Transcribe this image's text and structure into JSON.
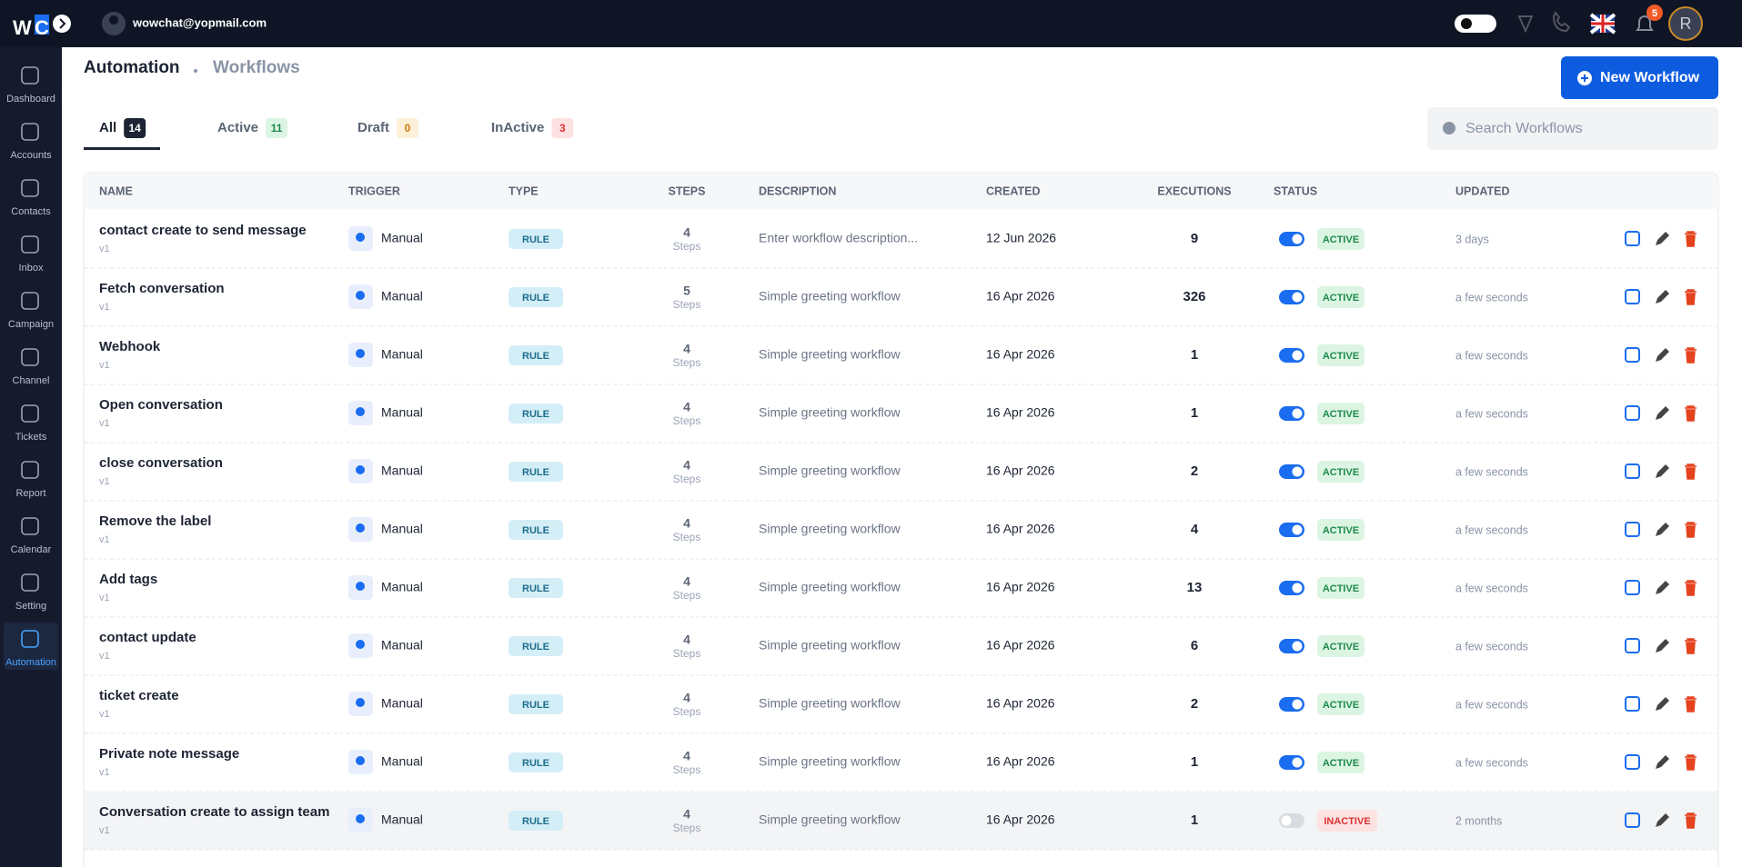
{
  "header": {
    "brand_w": "W",
    "brand_c": "C",
    "email": "wowchat@yopmail.com",
    "notifications": 5,
    "avatar": "R"
  },
  "sidebar": {
    "items": [
      {
        "label": "Dashboard"
      },
      {
        "label": "Accounts"
      },
      {
        "label": "Contacts"
      },
      {
        "label": "Inbox"
      },
      {
        "label": "Campaign"
      },
      {
        "label": "Channel"
      },
      {
        "label": "Tickets"
      },
      {
        "label": "Report"
      },
      {
        "label": "Calendar"
      },
      {
        "label": "Setting"
      },
      {
        "label": "Automation",
        "active": true
      }
    ]
  },
  "page": {
    "title": "Automation",
    "breadcrumb": "Workflows",
    "new_button": "New Workflow",
    "search_placeholder": "Search Workflows",
    "tabs": [
      {
        "label": "All",
        "count": 14,
        "active": true
      },
      {
        "label": "Active",
        "count": 11
      },
      {
        "label": "Draft",
        "count": 0
      },
      {
        "label": "InActive",
        "count": 3
      }
    ]
  },
  "table": {
    "columns": [
      "NAME",
      "TRIGGER",
      "TYPE",
      "STEPS",
      "DESCRIPTION",
      "CREATED",
      "EXECUTIONS",
      "STATUS",
      "UPDATED"
    ],
    "rows": [
      {
        "name": "contact create to send message",
        "version": "v1",
        "trigger": "Manual",
        "type": "RULE",
        "steps": 4,
        "steps_label": "Steps",
        "description": "Enter workflow description...",
        "created": "12 Jun 2026",
        "executions": 9,
        "enabled": true,
        "status": "ACTIVE",
        "updated": "3 days"
      },
      {
        "name": "Fetch conversation",
        "version": "v1",
        "trigger": "Manual",
        "type": "RULE",
        "steps": 5,
        "steps_label": "Steps",
        "description": "Simple greeting workflow",
        "created": "16 Apr 2026",
        "executions": 326,
        "enabled": true,
        "status": "ACTIVE",
        "updated": "a few seconds"
      },
      {
        "name": "Webhook",
        "version": "v1",
        "trigger": "Manual",
        "type": "RULE",
        "steps": 4,
        "steps_label": "Steps",
        "description": "Simple greeting workflow",
        "created": "16 Apr 2026",
        "executions": 1,
        "enabled": true,
        "status": "ACTIVE",
        "updated": "a few seconds"
      },
      {
        "name": "Open conversation",
        "version": "v1",
        "trigger": "Manual",
        "type": "RULE",
        "steps": 4,
        "steps_label": "Steps",
        "description": "Simple greeting workflow",
        "created": "16 Apr 2026",
        "executions": 1,
        "enabled": true,
        "status": "ACTIVE",
        "updated": "a few seconds"
      },
      {
        "name": "close conversation",
        "version": "v1",
        "trigger": "Manual",
        "type": "RULE",
        "steps": 4,
        "steps_label": "Steps",
        "description": "Simple greeting workflow",
        "created": "16 Apr 2026",
        "executions": 2,
        "enabled": true,
        "status": "ACTIVE",
        "updated": "a few seconds"
      },
      {
        "name": "Remove the label",
        "version": "v1",
        "trigger": "Manual",
        "type": "RULE",
        "steps": 4,
        "steps_label": "Steps",
        "description": "Simple greeting workflow",
        "created": "16 Apr 2026",
        "executions": 4,
        "enabled": true,
        "status": "ACTIVE",
        "updated": "a few seconds"
      },
      {
        "name": "Add tags",
        "version": "v1",
        "trigger": "Manual",
        "type": "RULE",
        "steps": 4,
        "steps_label": "Steps",
        "description": "Simple greeting workflow",
        "created": "16 Apr 2026",
        "executions": 13,
        "enabled": true,
        "status": "ACTIVE",
        "updated": "a few seconds"
      },
      {
        "name": "contact update",
        "version": "v1",
        "trigger": "Manual",
        "type": "RULE",
        "steps": 4,
        "steps_label": "Steps",
        "description": "Simple greeting workflow",
        "created": "16 Apr 2026",
        "executions": 6,
        "enabled": true,
        "status": "ACTIVE",
        "updated": "a few seconds"
      },
      {
        "name": "ticket create",
        "version": "v1",
        "trigger": "Manual",
        "type": "RULE",
        "steps": 4,
        "steps_label": "Steps",
        "description": "Simple greeting workflow",
        "created": "16 Apr 2026",
        "executions": 2,
        "enabled": true,
        "status": "ACTIVE",
        "updated": "a few seconds"
      },
      {
        "name": "Private note message",
        "version": "v1",
        "trigger": "Manual",
        "type": "RULE",
        "steps": 4,
        "steps_label": "Steps",
        "description": "Simple greeting workflow",
        "created": "16 Apr 2026",
        "executions": 1,
        "enabled": true,
        "status": "ACTIVE",
        "updated": "a few seconds"
      },
      {
        "name": "Conversation create to assign team",
        "version": "v1",
        "trigger": "Manual",
        "type": "RULE",
        "steps": 4,
        "steps_label": "Steps",
        "description": "Simple greeting workflow",
        "created": "16 Apr 2026",
        "executions": 1,
        "enabled": false,
        "status": "INACTIVE",
        "updated": "2 months"
      }
    ]
  }
}
